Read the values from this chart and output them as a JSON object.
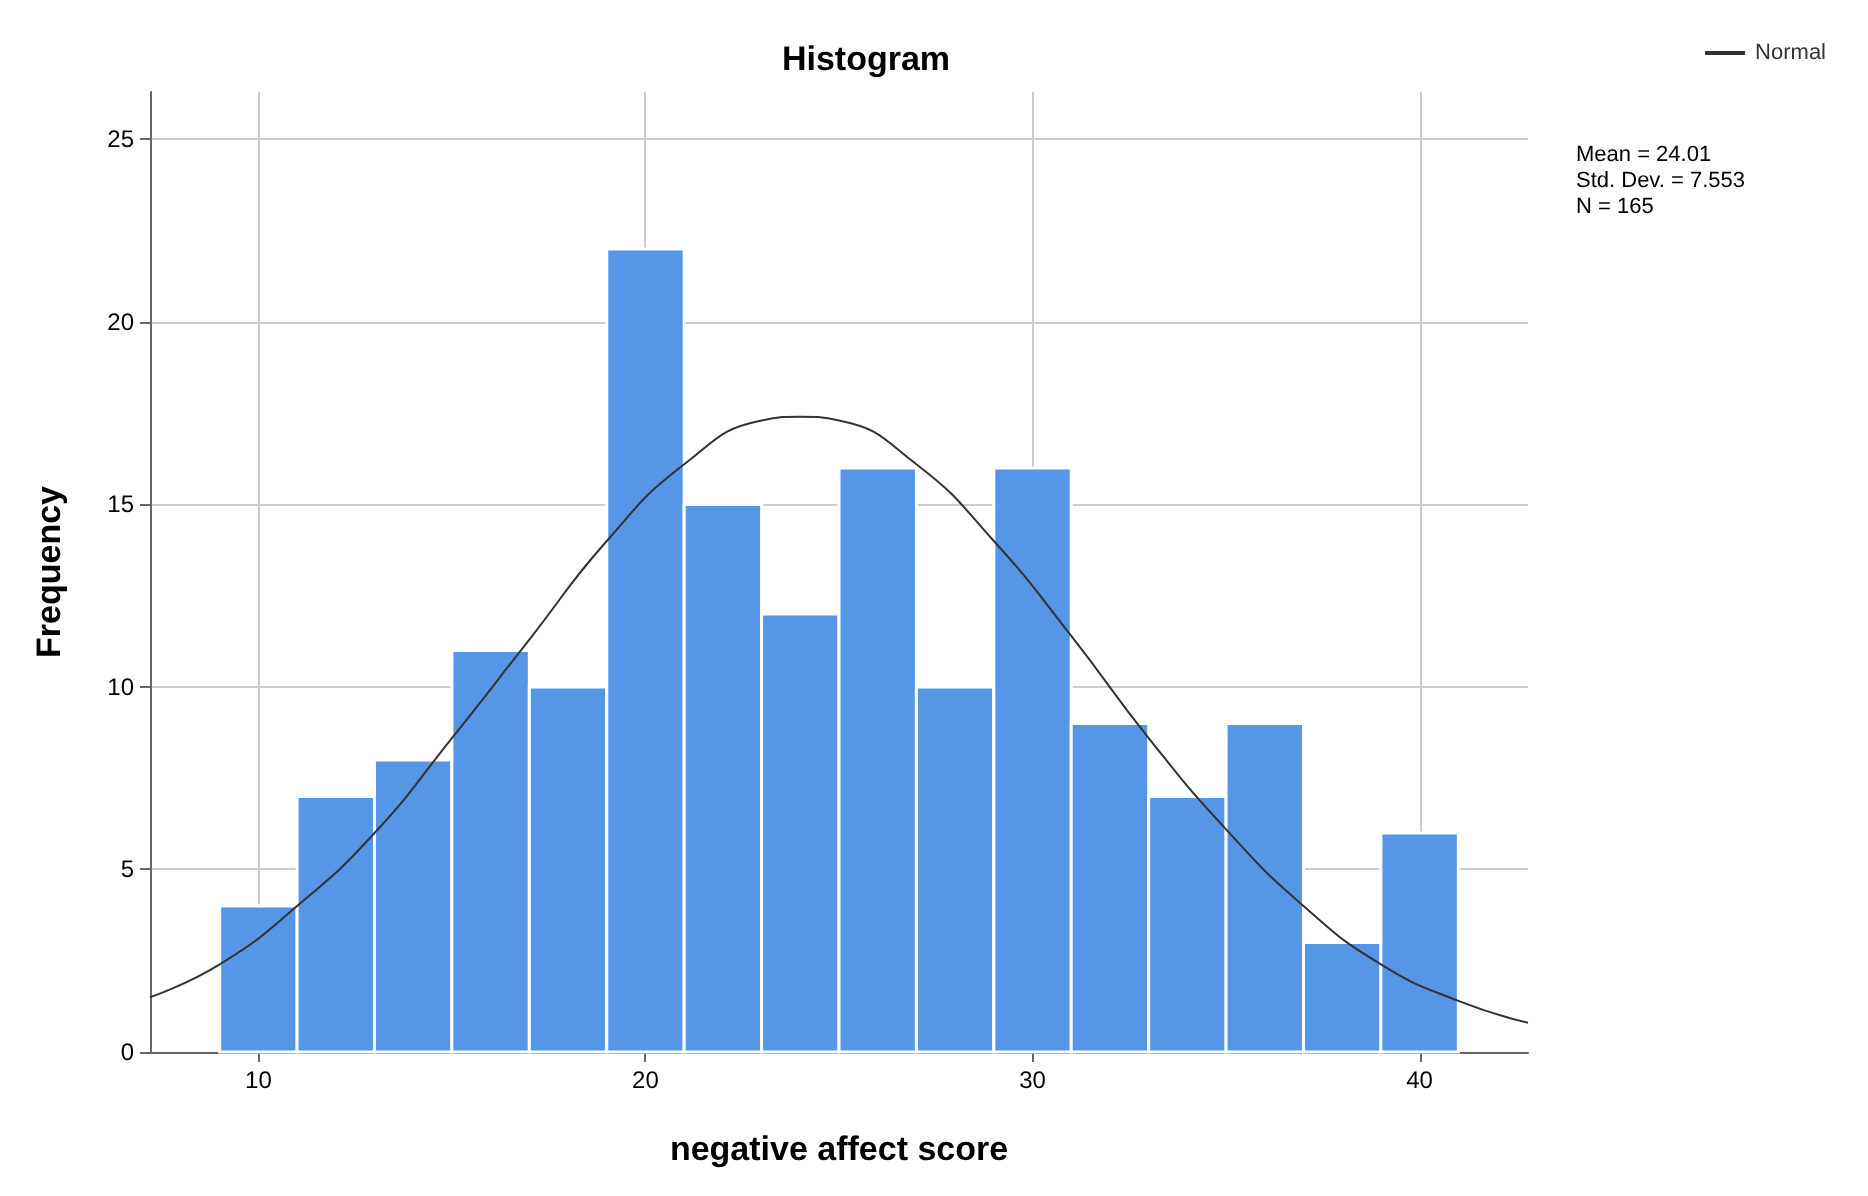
{
  "chart_data": {
    "type": "histogram",
    "title": "Histogram",
    "xlabel": "negative affect score",
    "ylabel": "Frequency",
    "bins": [
      9,
      11,
      13,
      15,
      17,
      19,
      21,
      23,
      25,
      27,
      29,
      31,
      33,
      35,
      37,
      39,
      41
    ],
    "values": [
      4,
      7,
      8,
      11,
      10,
      22,
      15,
      12,
      16,
      10,
      16,
      9,
      7,
      9,
      3,
      6
    ],
    "color": "#5596e6",
    "series": [
      {
        "type": "line",
        "name": "Normal",
        "color": "#333333",
        "x": [
          7.2,
          9,
          11,
          13,
          15,
          17,
          19,
          21,
          23,
          24,
          25,
          27,
          29,
          31,
          33,
          35,
          37,
          39,
          41,
          42.8
        ],
        "values": [
          1.5,
          2.4,
          4.0,
          6.0,
          8.6,
          11.3,
          14.0,
          16.1,
          17.3,
          17.4,
          17.3,
          16.1,
          14.0,
          11.4,
          8.6,
          6.1,
          4.0,
          2.4,
          1.4,
          0.8
        ]
      }
    ],
    "xlim": [
      7.2,
      42.8
    ],
    "xticks": [
      10,
      20,
      30,
      40
    ],
    "ylim": [
      0,
      26.3
    ],
    "yticks": [
      0,
      5,
      10,
      15,
      20,
      25
    ],
    "grid": true,
    "legend": "top right",
    "marker": "none",
    "line_style": "solid",
    "annotations": [
      "Mean = 24.01",
      "Std. Dev. = 7.553",
      "N = 165"
    ]
  }
}
